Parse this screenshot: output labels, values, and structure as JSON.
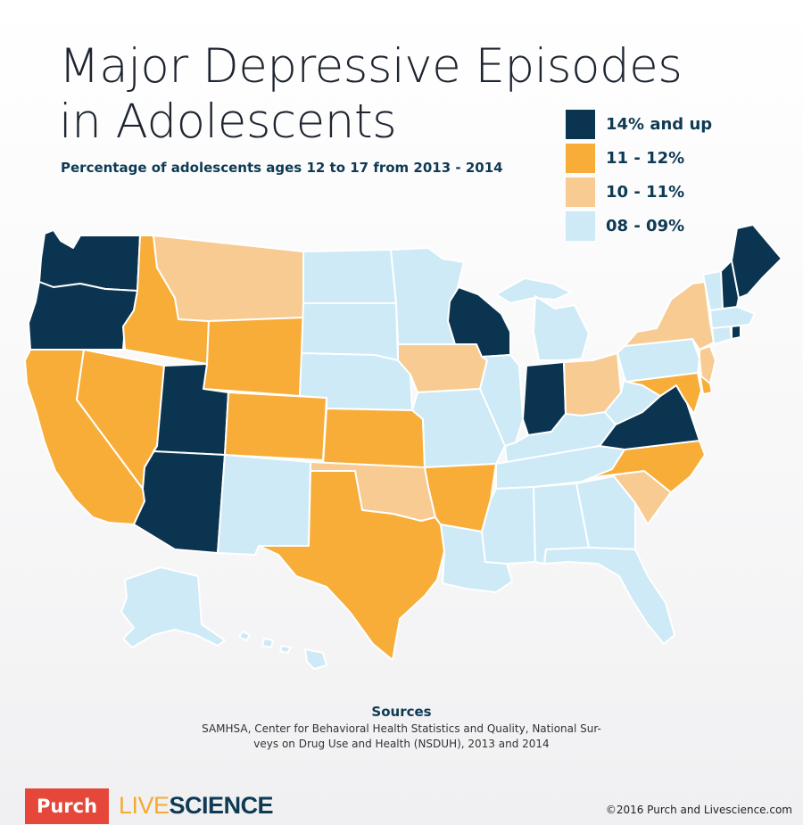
{
  "title": {
    "line1": "Major Depressive Episodes",
    "line2": "in Adolescents"
  },
  "subtitle": "Percentage of adolescents ages 12 to 17 from 2013 - 2014",
  "legend": [
    {
      "label": "14% and up",
      "color": "#0a3450",
      "category": "high"
    },
    {
      "label": "11 - 12%",
      "color": "#f7ad38",
      "category": "midhigh"
    },
    {
      "label": "10 - 11%",
      "color": "#f8cb92",
      "category": "mid"
    },
    {
      "label": "08 - 09%",
      "color": "#cdeaf6",
      "category": "low"
    }
  ],
  "map_data": {
    "states": {
      "WA": "high",
      "OR": "high",
      "UT": "high",
      "AZ": "high",
      "WI": "high",
      "IN": "high",
      "VA": "high",
      "ME": "high",
      "NH": "high",
      "RI": "high",
      "CA": "midhigh",
      "NV": "midhigh",
      "ID": "midhigh",
      "WY": "midhigh",
      "CO": "midhigh",
      "KS": "midhigh",
      "TX": "midhigh",
      "AR": "midhigh",
      "NC": "midhigh",
      "MD": "midhigh",
      "DE": "midhigh",
      "MT": "mid",
      "IA": "mid",
      "OK": "mid",
      "OH": "mid",
      "NY": "mid",
      "NJ": "mid",
      "SC": "mid",
      "ND": "low",
      "SD": "low",
      "NE": "low",
      "MN": "low",
      "MO": "low",
      "IL": "low",
      "MI": "low",
      "KY": "low",
      "TN": "low",
      "WV": "low",
      "PA": "low",
      "NM": "low",
      "LA": "low",
      "MS": "low",
      "AL": "low",
      "GA": "low",
      "FL": "low",
      "VT": "low",
      "MA": "low",
      "CT": "low",
      "AK": "low",
      "HI": "low"
    }
  },
  "sources": {
    "title": "Sources",
    "line1": "SAMHSA, Center for Behavioral Health Statistics and Quality, National Sur-",
    "line2": "veys on Drug Use and Health (NSDUH), 2013 and 2014"
  },
  "footer": {
    "purch": "Purch",
    "live": "LIVE",
    "science": "SCIENCE",
    "copyright": "©2016 Purch and Livescience.com"
  }
}
